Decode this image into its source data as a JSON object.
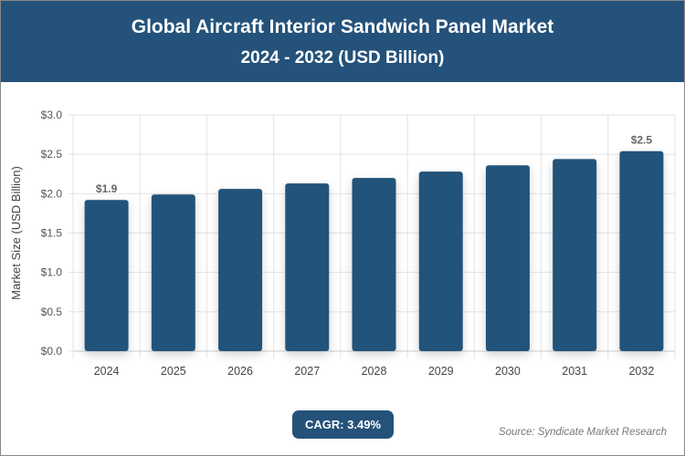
{
  "header": {
    "title": "Global Aircraft Interior Sandwich Panel Market",
    "subtitle": "2024 - 2032 (USD Billion)"
  },
  "chart_data": {
    "type": "bar",
    "title": "Global Aircraft Interior Sandwich Panel Market",
    "subtitle": "2024 - 2032 (USD Billion)",
    "categories": [
      "2024",
      "2025",
      "2026",
      "2027",
      "2028",
      "2029",
      "2030",
      "2031",
      "2032"
    ],
    "values": [
      1.92,
      1.99,
      2.06,
      2.13,
      2.2,
      2.28,
      2.36,
      2.44,
      2.54
    ],
    "data_labels": {
      "0": "$1.9",
      "8": "$2.5"
    },
    "xlabel": "",
    "ylabel": "Market Size (USD Billion)",
    "ylim": [
      0,
      3.0
    ],
    "yticks": [
      "$0.0",
      "$0.5",
      "$1.0",
      "$1.5",
      "$2.0",
      "$2.5",
      "$3.0"
    ],
    "grid": true,
    "bar_color": "#24527a"
  },
  "footer": {
    "cagr": "CAGR: 3.49%",
    "source": "Source: Syndicate Market Research"
  }
}
